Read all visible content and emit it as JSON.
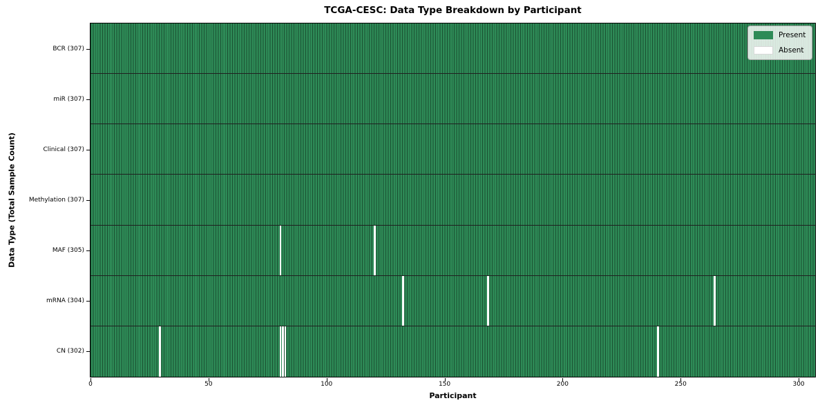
{
  "title": "TCGA-CESC: Data Type Breakdown by Participant",
  "chart_data": {
    "type": "heatmap",
    "title": "TCGA-CESC: Data Type Breakdown by Participant",
    "xlabel": "Participant",
    "ylabel": "Data Type (Total Sample Count)",
    "x_ticks": [
      0,
      50,
      100,
      150,
      200,
      250,
      300
    ],
    "xlim": [
      0,
      307
    ],
    "n_participants": 307,
    "grid": false,
    "rows": [
      {
        "data_type": "BCR",
        "label": "BCR (307)",
        "present_count": 307,
        "absent_participants": []
      },
      {
        "data_type": "miR",
        "label": "miR (307)",
        "present_count": 307,
        "absent_participants": []
      },
      {
        "data_type": "Clinical",
        "label": "Clinical (307)",
        "present_count": 307,
        "absent_participants": []
      },
      {
        "data_type": "Methylation",
        "label": "Methylation (307)",
        "present_count": 307,
        "absent_participants": []
      },
      {
        "data_type": "MAF",
        "label": "MAF (305)",
        "present_count": 305,
        "absent_participants": [
          80,
          120
        ]
      },
      {
        "data_type": "mRNA",
        "label": "mRNA (304)",
        "present_count": 304,
        "absent_participants": [
          132,
          168,
          264
        ]
      },
      {
        "data_type": "CN",
        "label": "CN (302)",
        "present_count": 302,
        "absent_participants": [
          29,
          80,
          81,
          82,
          240
        ]
      }
    ],
    "legend": {
      "position": "upper right",
      "entries": [
        {
          "label": "Present",
          "color": "#2e8b57"
        },
        {
          "label": "Absent",
          "color": "#ffffff"
        }
      ]
    },
    "colors": {
      "present_fill": "#2e8b57",
      "cell_edge": "#1a4f31",
      "absent_fill": "#ffffff",
      "row_divider": "#1f1f1f",
      "axes_border": "#000000",
      "tick_color": "#000000"
    }
  }
}
